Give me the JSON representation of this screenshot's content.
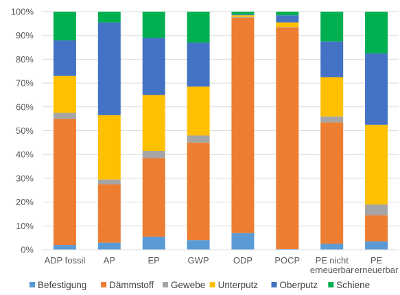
{
  "chart_data": {
    "type": "bar",
    "stacked": "percent",
    "title": "",
    "xlabel": "",
    "ylabel": "",
    "ylim": [
      0,
      100
    ],
    "yticks": [
      "0%",
      "10%",
      "20%",
      "30%",
      "40%",
      "50%",
      "60%",
      "70%",
      "80%",
      "90%",
      "100%"
    ],
    "grid": true,
    "legend_position": "bottom",
    "categories": [
      [
        "ADP fossil"
      ],
      [
        "AP"
      ],
      [
        "EP"
      ],
      [
        "GWP"
      ],
      [
        "ODP"
      ],
      [
        "POCP"
      ],
      [
        "PE nicht",
        "erneuerbar"
      ],
      [
        "PE",
        "erneuerbar"
      ]
    ],
    "series": [
      {
        "name": "Befestigung",
        "color": "#5B9BD5",
        "values": [
          2,
          3,
          5.5,
          4,
          7,
          0.3,
          2.5,
          3.5
        ]
      },
      {
        "name": "Dämmstoff",
        "color": "#ED7D31",
        "values": [
          53,
          24.5,
          33,
          41,
          90.5,
          93,
          51,
          11
        ]
      },
      {
        "name": "Gewebe",
        "color": "#A5A5A5",
        "values": [
          2.5,
          2,
          3,
          3,
          0.3,
          0.2,
          2.5,
          4.5
        ]
      },
      {
        "name": "Unterputz",
        "color": "#FFC000",
        "values": [
          15.5,
          27,
          23.5,
          20.5,
          0.7,
          2,
          16.5,
          33.5
        ]
      },
      {
        "name": "Oberputz",
        "color": "#4472C4",
        "values": [
          15,
          39,
          24,
          18.5,
          0.3,
          3,
          15,
          30
        ]
      },
      {
        "name": "Schiene",
        "color": "#00B050",
        "values": [
          12,
          4.5,
          11,
          13,
          1.2,
          1.5,
          12.5,
          17.5
        ]
      }
    ]
  }
}
